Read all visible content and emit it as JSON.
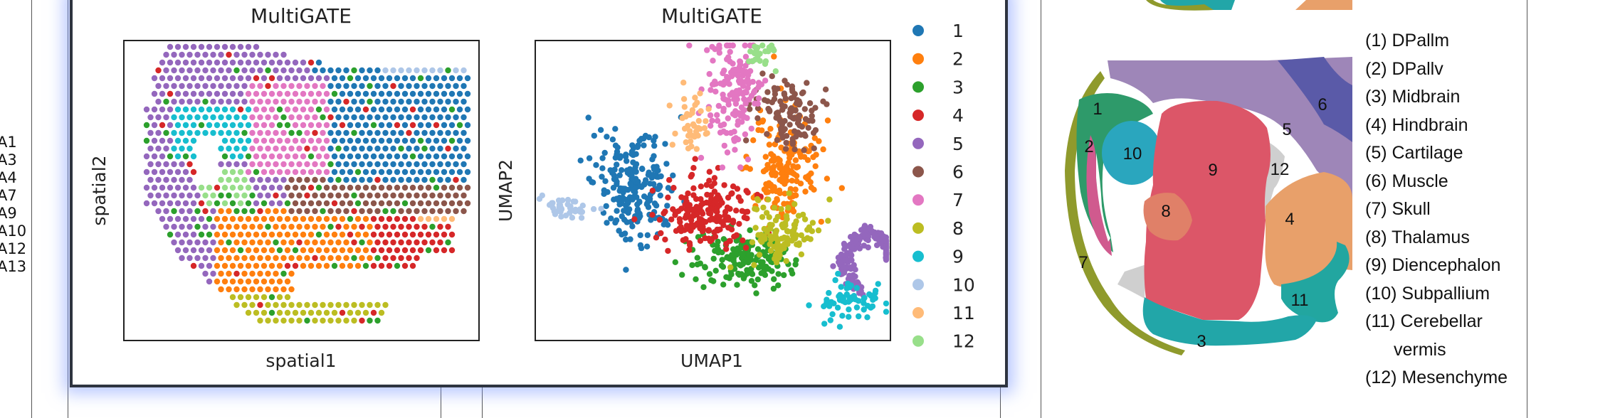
{
  "left_list": [
    "A1",
    "A3",
    "A4",
    "A7",
    "A9",
    "A10",
    "A12",
    "A13"
  ],
  "chart_data": [
    {
      "type": "scatter",
      "title": "MultiGATE",
      "xlabel": "spatial1",
      "ylabel": "spatial2",
      "grid": false,
      "note": "spatial spot grid colored by MultiGATE cluster"
    },
    {
      "type": "scatter",
      "title": "MultiGATE",
      "xlabel": "UMAP1",
      "ylabel": "UMAP2",
      "grid": false,
      "legend_position": "right",
      "categories": [
        "1",
        "2",
        "3",
        "4",
        "5",
        "6",
        "7",
        "8",
        "9",
        "10",
        "11",
        "12"
      ],
      "colors": [
        "#1f77b4",
        "#ff7f0e",
        "#2ca02c",
        "#d62728",
        "#9467bd",
        "#8c564b",
        "#e377c2",
        "#bcbd22",
        "#17becf",
        "#aec7e8",
        "#ffbb78",
        "#98df8a"
      ]
    },
    {
      "type": "diagram",
      "region_labels": [
        "1",
        "2",
        "10",
        "9",
        "8",
        "12",
        "5",
        "6",
        "4",
        "11",
        "3",
        "7"
      ],
      "region_colors": {
        "1": "#2e9a6a",
        "2": "#d05a8e",
        "3": "#22a6a8",
        "4": "#e8a06a",
        "5": "#9e86b8",
        "6": "#5a5aa8",
        "7": "#8f9a2c",
        "8": "#e08068",
        "9": "#dc5668",
        "10": "#2aa6be",
        "11": "#22a6a0",
        "12": "#cfcfcf"
      }
    }
  ],
  "region_legend": [
    {
      "text": "(1) DPallm"
    },
    {
      "text": "(2) DPallv"
    },
    {
      "text": "(3) Midbrain"
    },
    {
      "text": "(4) Hindbrain"
    },
    {
      "text": "(5) Cartilage"
    },
    {
      "text": "(6) Muscle"
    },
    {
      "text": "(7) Skull"
    },
    {
      "text": "(8) Thalamus"
    },
    {
      "text": "(9) Diencephalon"
    },
    {
      "text": "(10) Subpallium"
    },
    {
      "text": "(11) Cerebellar"
    },
    {
      "text": "vermis"
    },
    {
      "text": "(12) Mesenchyme"
    }
  ]
}
